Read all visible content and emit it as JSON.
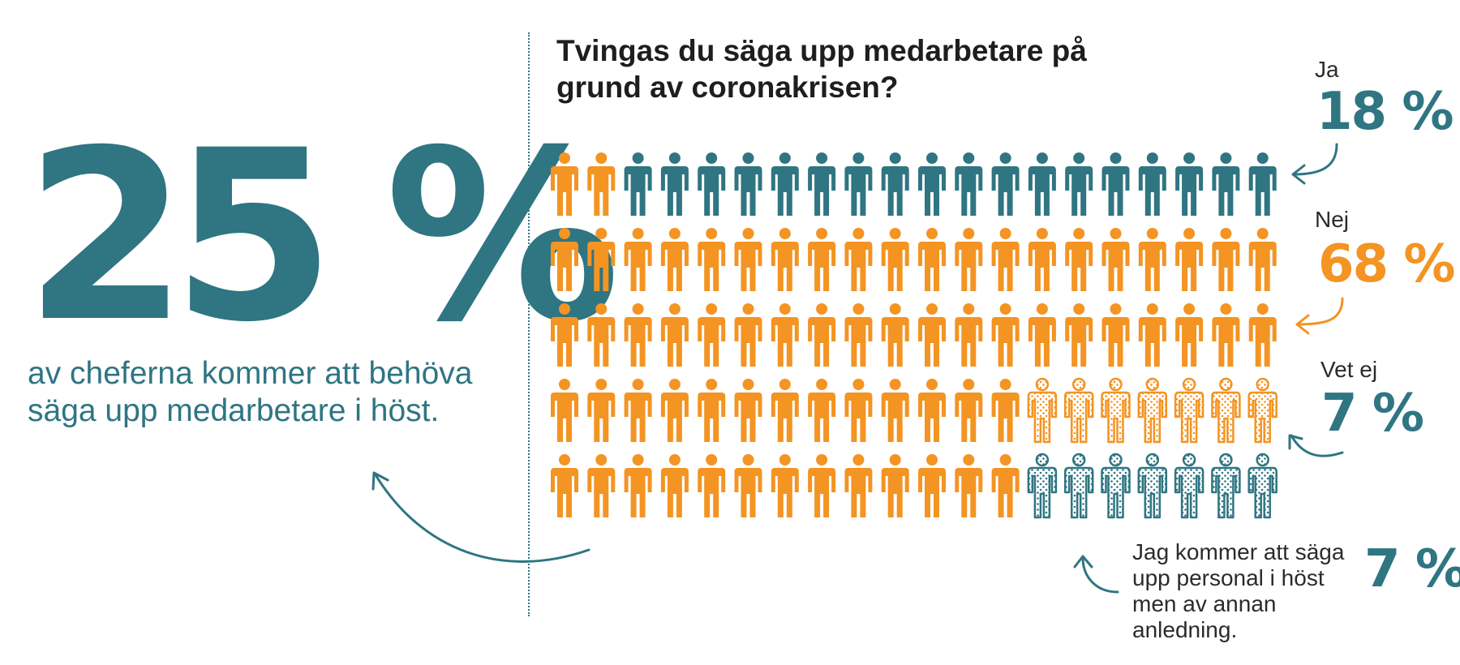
{
  "headline": {
    "value": "25 %",
    "caption": "av cheferna kommer att behöva säga upp medarbetare i höst."
  },
  "title": "Tvingas du säga upp medarbetare på grund av coronakrisen?",
  "legend": [
    {
      "label": "Ja",
      "value": "18 %"
    },
    {
      "label": "Nej",
      "value": "68 %"
    },
    {
      "label": "Vet ej",
      "value": "7 %"
    }
  ],
  "note": {
    "text": "Jag kommer att säga upp personal i höst men av annan anledning.",
    "value": "7 %"
  },
  "colors": {
    "teal": "#2f7582",
    "orange": "#f39423",
    "text": "#1e1e1e"
  },
  "chart_data": {
    "type": "pictograph",
    "unit": "person icon = 1 %",
    "grid": {
      "rows": 5,
      "cols": 20
    },
    "categories": [
      "Ja",
      "Nej",
      "Vet ej",
      "Jag kommer att säga upp personal i höst men av annan anledning."
    ],
    "values": [
      18,
      68,
      7,
      7
    ],
    "styles": [
      "teal-solid",
      "orange-solid",
      "orange-dotted",
      "teal-dotted"
    ],
    "rows": [
      [
        "orange-solid",
        "orange-solid",
        "teal-solid",
        "teal-solid",
        "teal-solid",
        "teal-solid",
        "teal-solid",
        "teal-solid",
        "teal-solid",
        "teal-solid",
        "teal-solid",
        "teal-solid",
        "teal-solid",
        "teal-solid",
        "teal-solid",
        "teal-solid",
        "teal-solid",
        "teal-solid",
        "teal-solid",
        "teal-solid"
      ],
      [
        "orange-solid",
        "orange-solid",
        "orange-solid",
        "orange-solid",
        "orange-solid",
        "orange-solid",
        "orange-solid",
        "orange-solid",
        "orange-solid",
        "orange-solid",
        "orange-solid",
        "orange-solid",
        "orange-solid",
        "orange-solid",
        "orange-solid",
        "orange-solid",
        "orange-solid",
        "orange-solid",
        "orange-solid",
        "orange-solid"
      ],
      [
        "orange-solid",
        "orange-solid",
        "orange-solid",
        "orange-solid",
        "orange-solid",
        "orange-solid",
        "orange-solid",
        "orange-solid",
        "orange-solid",
        "orange-solid",
        "orange-solid",
        "orange-solid",
        "orange-solid",
        "orange-solid",
        "orange-solid",
        "orange-solid",
        "orange-solid",
        "orange-solid",
        "orange-solid",
        "orange-solid"
      ],
      [
        "orange-solid",
        "orange-solid",
        "orange-solid",
        "orange-solid",
        "orange-solid",
        "orange-solid",
        "orange-solid",
        "orange-solid",
        "orange-solid",
        "orange-solid",
        "orange-solid",
        "orange-solid",
        "orange-solid",
        "orange-dotted",
        "orange-dotted",
        "orange-dotted",
        "orange-dotted",
        "orange-dotted",
        "orange-dotted",
        "orange-dotted"
      ],
      [
        "orange-solid",
        "orange-solid",
        "orange-solid",
        "orange-solid",
        "orange-solid",
        "orange-solid",
        "orange-solid",
        "orange-solid",
        "orange-solid",
        "orange-solid",
        "orange-solid",
        "orange-solid",
        "orange-solid",
        "teal-dotted",
        "teal-dotted",
        "teal-dotted",
        "teal-dotted",
        "teal-dotted",
        "teal-dotted",
        "teal-dotted"
      ]
    ]
  }
}
